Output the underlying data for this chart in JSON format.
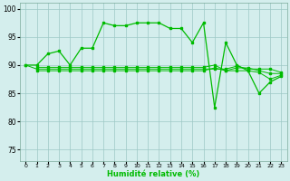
{
  "main_x": [
    0,
    1,
    2,
    3,
    4,
    5,
    6,
    7,
    8,
    9,
    10,
    11,
    12,
    13,
    14,
    15,
    16,
    17,
    18,
    19,
    20,
    21,
    22,
    23
  ],
  "main_y": [
    90,
    90,
    92,
    92.5,
    90,
    93,
    93,
    97.5,
    97,
    97,
    97.5,
    97.5,
    97.5,
    96.5,
    96.5,
    94,
    97.5,
    82.5,
    94,
    90,
    89,
    85,
    87,
    88
  ],
  "flat1_x": [
    0,
    1,
    2,
    3,
    4,
    5,
    6,
    7,
    8,
    9,
    10,
    11,
    12,
    13,
    14,
    15,
    16,
    17,
    18,
    19,
    20,
    21,
    22,
    23
  ],
  "flat1_y": [
    90,
    89.3,
    89.3,
    89.3,
    89.3,
    89.3,
    89.3,
    89.3,
    89.3,
    89.3,
    89.3,
    89.3,
    89.3,
    89.3,
    89.3,
    89.3,
    89.3,
    89.3,
    89.3,
    89.8,
    89.3,
    89.3,
    89.3,
    88.7
  ],
  "flat2_x": [
    1,
    2,
    3,
    4,
    5,
    6,
    7,
    8,
    9,
    10,
    11,
    12,
    13,
    14,
    15,
    16,
    17,
    18,
    19,
    20,
    21,
    22,
    23
  ],
  "flat2_y": [
    89.0,
    89.0,
    89.0,
    89.0,
    89.0,
    89.0,
    89.0,
    89.0,
    89.0,
    89.0,
    89.0,
    89.0,
    89.0,
    89.0,
    89.0,
    89.0,
    89.5,
    89.0,
    89.0,
    89.0,
    88.7,
    87.5,
    88.2
  ],
  "flat3_x": [
    1,
    2,
    3,
    4,
    5,
    6,
    7,
    8,
    9,
    10,
    11,
    12,
    13,
    14,
    15,
    16,
    17,
    18,
    19,
    20,
    21,
    22,
    23
  ],
  "flat3_y": [
    89.6,
    89.6,
    89.6,
    89.6,
    89.6,
    89.6,
    89.6,
    89.6,
    89.6,
    89.6,
    89.6,
    89.6,
    89.6,
    89.6,
    89.6,
    89.6,
    90.0,
    89.0,
    89.5,
    89.5,
    89.0,
    88.5,
    88.5
  ],
  "line_color": "#00bb00",
  "bg_color": "#d4eeed",
  "grid_color": "#9dc8c5",
  "xlabel": "Humidité relative (%)",
  "ylim": [
    73,
    101
  ],
  "xlim": [
    -0.5,
    23.5
  ],
  "yticks": [
    75,
    80,
    85,
    90,
    95,
    100
  ],
  "xticks": [
    0,
    1,
    2,
    3,
    4,
    5,
    6,
    7,
    8,
    9,
    10,
    11,
    12,
    13,
    14,
    15,
    16,
    17,
    18,
    19,
    20,
    21,
    22,
    23
  ],
  "xtick_labels": [
    "0",
    "1",
    "2",
    "3",
    "4",
    "5",
    "6",
    "7",
    "8",
    "9",
    "10",
    "11",
    "12",
    "13",
    "14",
    "15",
    "16",
    "17",
    "18",
    "19",
    "20",
    "21",
    "22",
    "23"
  ]
}
